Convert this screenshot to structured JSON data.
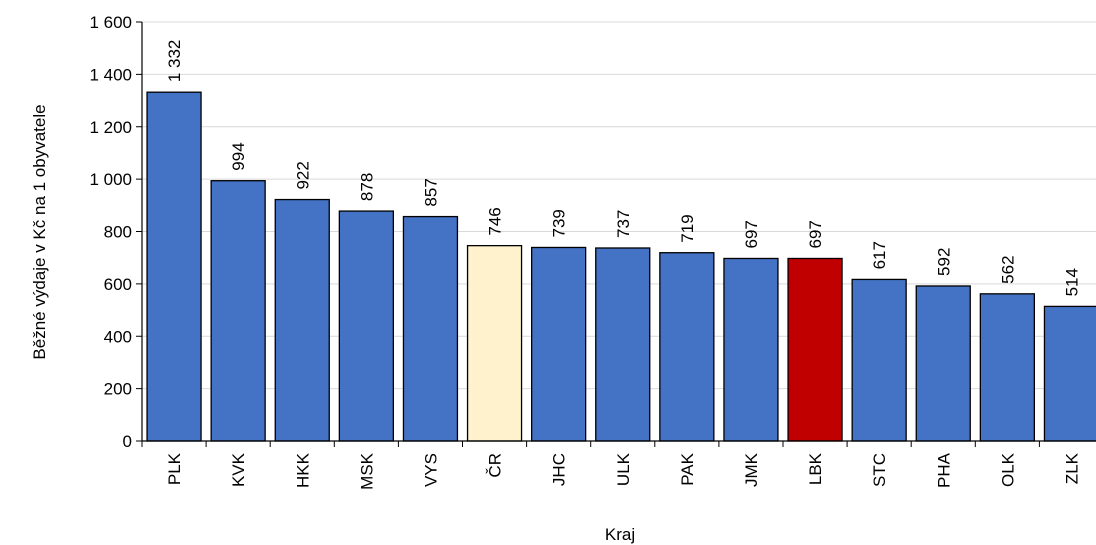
{
  "chart_data": {
    "type": "bar",
    "title": "",
    "xlabel": "Kraj",
    "ylabel": "Běžné výdaje v Kč na 1 obyvatele",
    "categories": [
      "PLK",
      "KVK",
      "HKK",
      "MSK",
      "VYS",
      "ČR",
      "JHC",
      "ULK",
      "PAK",
      "JMK",
      "LBK",
      "STC",
      "PHA",
      "OLK",
      "ZLK"
    ],
    "values": [
      1332,
      994,
      922,
      878,
      857,
      746,
      739,
      737,
      719,
      697,
      697,
      617,
      592,
      562,
      514
    ],
    "data_labels": [
      "1 332",
      "994",
      "922",
      "878",
      "857",
      "746",
      "739",
      "737",
      "719",
      "697",
      "697",
      "617",
      "592",
      "562",
      "514"
    ],
    "ylim": [
      0,
      1600
    ],
    "yticks": [
      0,
      200,
      400,
      600,
      800,
      1000,
      1200,
      1400,
      1600
    ],
    "ytick_labels": [
      "0",
      "200",
      "400",
      "600",
      "800",
      "1 000",
      "1 200",
      "1 400",
      "1 600"
    ],
    "grid": true,
    "legend": "none",
    "colors": {
      "default": "#4472C4",
      "highlight_cr": "#FFF2CC",
      "highlight_lbk": "#C00000",
      "bar_outline": "#000000",
      "grid": "#D9D9D9"
    },
    "bar_colors": [
      "default",
      "default",
      "default",
      "default",
      "default",
      "highlight_cr",
      "default",
      "default",
      "default",
      "default",
      "highlight_lbk",
      "default",
      "default",
      "default",
      "default"
    ]
  }
}
